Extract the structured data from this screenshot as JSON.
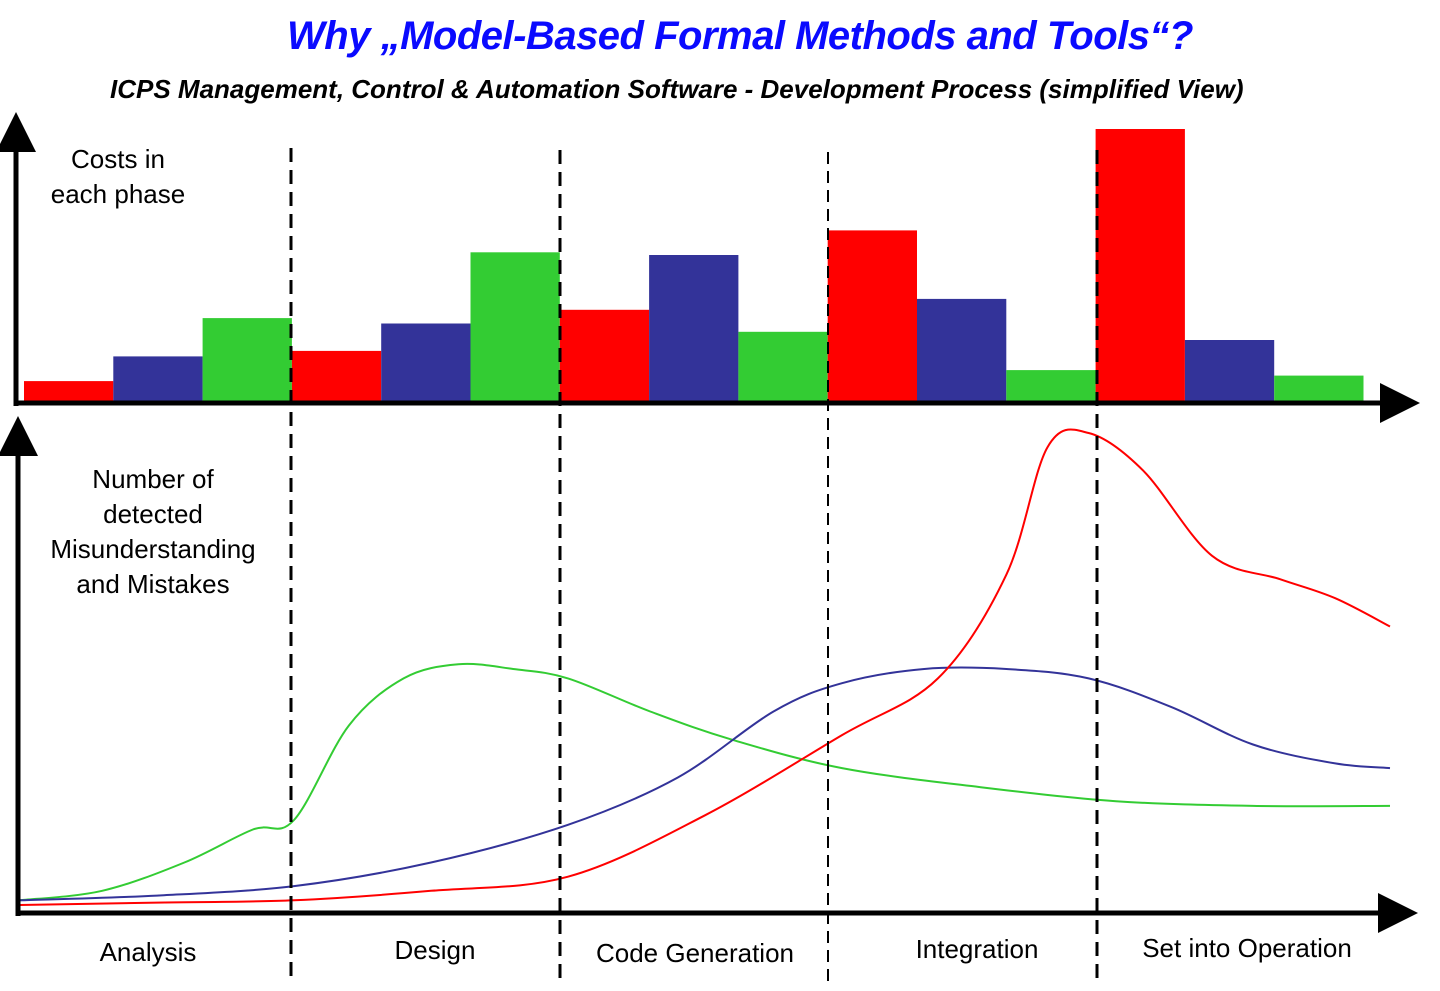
{
  "title": "Why „Model-Based Formal Methods and Tools“?",
  "subtitle": "ICPS Management, Control & Automation Software - Development Process (simplified View)",
  "colors": {
    "title": "#0a0aff",
    "red": "#ff0000",
    "blue": "#333399",
    "green": "#33cc33"
  },
  "chart_data": [
    {
      "type": "bar",
      "title": "",
      "ylabel": "Costs in each phase",
      "ylabel_lines": [
        "Costs in",
        "each phase"
      ],
      "xlabel": "",
      "categories": [
        "Analysis",
        "Design",
        "Code Generation",
        "Integration",
        "Set into Operation"
      ],
      "ylim": [
        0,
        100
      ],
      "grid": false,
      "legend": "none",
      "series": [
        {
          "name": "red",
          "color": "#ff0000",
          "values": [
            8,
            19,
            34,
            63,
            100
          ]
        },
        {
          "name": "blue",
          "color": "#333399",
          "values": [
            17,
            29,
            54,
            38,
            23
          ]
        },
        {
          "name": "green",
          "color": "#33cc33",
          "values": [
            31,
            55,
            26,
            12,
            10
          ]
        }
      ]
    },
    {
      "type": "line",
      "title": "",
      "ylabel": "Number of detected Misunderstanding and Mistakes",
      "ylabel_lines": [
        "Number of",
        "detected",
        "Misunderstanding",
        "and Mistakes"
      ],
      "xlabel": "",
      "categories": [
        "Analysis",
        "Design",
        "Code Generation",
        "Integration",
        "Set into Operation"
      ],
      "xlim": [
        0,
        5
      ],
      "ylim": [
        0,
        100
      ],
      "grid": false,
      "legend": "none",
      "series": [
        {
          "name": "green",
          "color": "#33cc33",
          "x": [
            0,
            0.3,
            0.6,
            0.85,
            1.0,
            1.2,
            1.4,
            1.6,
            1.8,
            2.0,
            2.3,
            2.6,
            3.0,
            3.5,
            4.0,
            4.5,
            5.0
          ],
          "y": [
            1,
            3,
            9,
            16,
            18,
            38,
            48,
            51,
            50,
            48,
            41,
            35,
            29,
            25,
            22,
            21,
            21
          ]
        },
        {
          "name": "blue",
          "color": "#333399",
          "x": [
            0,
            0.5,
            1.0,
            1.5,
            2.0,
            2.4,
            2.75,
            3.0,
            3.3,
            3.6,
            3.9,
            4.2,
            4.5,
            4.8,
            5.0
          ],
          "y": [
            1,
            2,
            4,
            9,
            17,
            27,
            41,
            47,
            50,
            50,
            48,
            42,
            34,
            30,
            29
          ]
        },
        {
          "name": "red",
          "color": "#ff0000",
          "x": [
            0,
            0.5,
            1.0,
            1.5,
            2.0,
            2.5,
            3.0,
            3.35,
            3.6,
            3.75,
            3.9,
            4.1,
            4.35,
            4.6,
            4.8,
            5.0
          ],
          "y": [
            0,
            0.5,
            1,
            3,
            6,
            19,
            36,
            48,
            70,
            97,
            100,
            92,
            74,
            69,
            65,
            59
          ]
        }
      ]
    }
  ],
  "phase_labels": [
    "Analysis",
    "Design",
    "Code Generation",
    "Integration",
    "Set into Operation"
  ]
}
